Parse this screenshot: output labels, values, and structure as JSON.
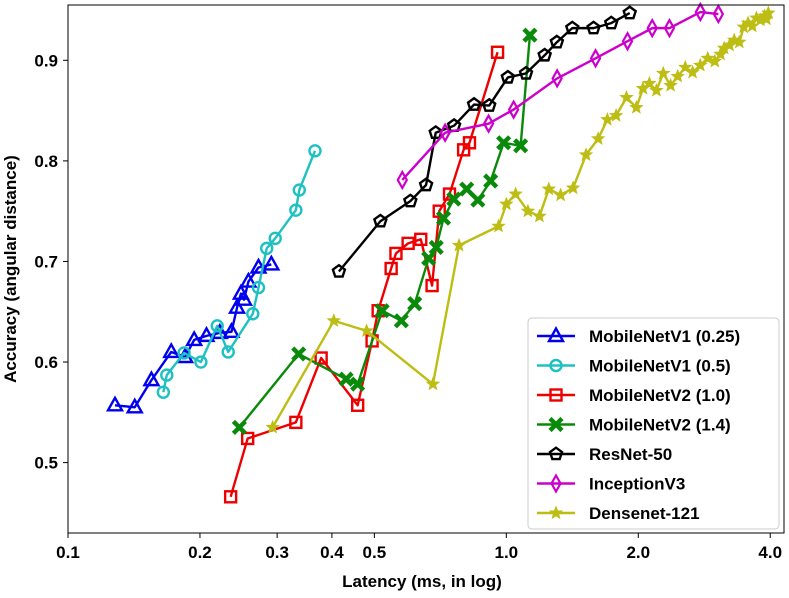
{
  "chart_data": {
    "type": "line",
    "title": "",
    "xlabel": "Latency (ms, in log)",
    "ylabel": "Accuracy (angular distance)",
    "xscale": "log",
    "xlim": [
      0.1,
      4.3
    ],
    "ylim": [
      0.43,
      0.955
    ],
    "xticks": [
      0.1,
      0.2,
      0.3,
      0.4,
      0.5,
      1.0,
      2.0,
      4.0
    ],
    "xtick_labels": [
      "0.1",
      "0.2",
      "0.3",
      "0.4",
      "0.5",
      "1.0",
      "2.0",
      "4.0"
    ],
    "yticks": [
      0.5,
      0.6,
      0.7,
      0.8,
      0.9
    ],
    "ytick_labels": [
      "0.5",
      "0.6",
      "0.7",
      "0.8",
      "0.9"
    ],
    "grid": false,
    "legend_position": "bottom-right",
    "series": [
      {
        "name": "MobileNetV1 (0.25)",
        "color": "#0000ee",
        "marker": "triangle",
        "points": [
          [
            0.128,
            0.557
          ],
          [
            0.142,
            0.555
          ],
          [
            0.155,
            0.582
          ],
          [
            0.172,
            0.61
          ],
          [
            0.185,
            0.605
          ],
          [
            0.194,
            0.622
          ],
          [
            0.207,
            0.626
          ],
          [
            0.222,
            0.629
          ],
          [
            0.236,
            0.63
          ],
          [
            0.243,
            0.654
          ],
          [
            0.248,
            0.668
          ],
          [
            0.252,
            0.662
          ],
          [
            0.258,
            0.68
          ],
          [
            0.272,
            0.694
          ],
          [
            0.291,
            0.697
          ]
        ]
      },
      {
        "name": "MobileNetV1 (0.5)",
        "color": "#1ec1c1",
        "marker": "circle",
        "points": [
          [
            0.165,
            0.57
          ],
          [
            0.168,
            0.587
          ],
          [
            0.184,
            0.609
          ],
          [
            0.201,
            0.6
          ],
          [
            0.219,
            0.636
          ],
          [
            0.232,
            0.61
          ],
          [
            0.264,
            0.648
          ],
          [
            0.272,
            0.674
          ],
          [
            0.284,
            0.713
          ],
          [
            0.297,
            0.723
          ],
          [
            0.331,
            0.751
          ],
          [
            0.337,
            0.771
          ],
          [
            0.366,
            0.81
          ]
        ]
      },
      {
        "name": "MobileNetV2 (1.0)",
        "color": "#ee0000",
        "marker": "square",
        "points": [
          [
            0.235,
            0.466
          ],
          [
            0.257,
            0.524
          ],
          [
            0.331,
            0.54
          ],
          [
            0.378,
            0.604
          ],
          [
            0.458,
            0.557
          ],
          [
            0.494,
            0.621
          ],
          [
            0.51,
            0.651
          ],
          [
            0.546,
            0.693
          ],
          [
            0.56,
            0.708
          ],
          [
            0.597,
            0.718
          ],
          [
            0.638,
            0.722
          ],
          [
            0.677,
            0.676
          ],
          [
            0.703,
            0.75
          ],
          [
            0.742,
            0.767
          ],
          [
            0.799,
            0.811
          ],
          [
            0.824,
            0.818
          ],
          [
            0.955,
            0.908
          ]
        ]
      },
      {
        "name": "MobileNetV2 (1.4)",
        "color": "#0a8a0a",
        "marker": "X",
        "points": [
          [
            0.246,
            0.535
          ],
          [
            0.336,
            0.608
          ],
          [
            0.431,
            0.583
          ],
          [
            0.458,
            0.578
          ],
          [
            0.521,
            0.651
          ],
          [
            0.576,
            0.641
          ],
          [
            0.618,
            0.658
          ],
          [
            0.665,
            0.703
          ],
          [
            0.692,
            0.714
          ],
          [
            0.719,
            0.743
          ],
          [
            0.759,
            0.762
          ],
          [
            0.812,
            0.772
          ],
          [
            0.861,
            0.761
          ],
          [
            0.921,
            0.78
          ],
          [
            0.986,
            0.818
          ],
          [
            1.078,
            0.815
          ],
          [
            1.132,
            0.925
          ]
        ]
      },
      {
        "name": "ResNet-50",
        "color": "#000000",
        "marker": "pentagon",
        "points": [
          [
            0.415,
            0.69
          ],
          [
            0.516,
            0.74
          ],
          [
            0.604,
            0.76
          ],
          [
            0.656,
            0.776
          ],
          [
            0.69,
            0.828
          ],
          [
            0.76,
            0.835
          ],
          [
            0.844,
            0.856
          ],
          [
            0.914,
            0.855
          ],
          [
            1.008,
            0.883
          ],
          [
            1.109,
            0.887
          ],
          [
            1.223,
            0.905
          ],
          [
            1.304,
            0.918
          ],
          [
            1.414,
            0.932
          ],
          [
            1.581,
            0.932
          ],
          [
            1.735,
            0.937
          ],
          [
            1.912,
            0.947
          ]
        ]
      },
      {
        "name": "InceptionV3",
        "color": "#cc00cc",
        "marker": "thin_diamond",
        "points": [
          [
            0.579,
            0.781
          ],
          [
            0.725,
            0.828
          ],
          [
            0.911,
            0.837
          ],
          [
            1.039,
            0.851
          ],
          [
            1.306,
            0.882
          ],
          [
            1.598,
            0.902
          ],
          [
            1.89,
            0.919
          ],
          [
            2.152,
            0.932
          ],
          [
            2.356,
            0.932
          ],
          [
            2.771,
            0.948
          ],
          [
            3.046,
            0.946
          ]
        ]
      },
      {
        "name": "Densenet-121",
        "color": "#bdbd14",
        "marker": "star",
        "points": [
          [
            0.293,
            0.535
          ],
          [
            0.404,
            0.641
          ],
          [
            0.48,
            0.631
          ],
          [
            0.68,
            0.578
          ],
          [
            0.78,
            0.716
          ],
          [
            0.96,
            0.735
          ],
          [
            1.0,
            0.757
          ],
          [
            1.05,
            0.767
          ],
          [
            1.12,
            0.75
          ],
          [
            1.19,
            0.745
          ],
          [
            1.25,
            0.772
          ],
          [
            1.33,
            0.766
          ],
          [
            1.42,
            0.773
          ],
          [
            1.52,
            0.806
          ],
          [
            1.62,
            0.822
          ],
          [
            1.7,
            0.841
          ],
          [
            1.78,
            0.845
          ],
          [
            1.88,
            0.863
          ],
          [
            1.98,
            0.853
          ],
          [
            2.05,
            0.872
          ],
          [
            2.12,
            0.877
          ],
          [
            2.2,
            0.87
          ],
          [
            2.28,
            0.887
          ],
          [
            2.37,
            0.875
          ],
          [
            2.46,
            0.884
          ],
          [
            2.56,
            0.893
          ],
          [
            2.66,
            0.888
          ],
          [
            2.77,
            0.895
          ],
          [
            2.88,
            0.902
          ],
          [
            2.99,
            0.899
          ],
          [
            3.08,
            0.906
          ],
          [
            3.14,
            0.912
          ],
          [
            3.23,
            0.915
          ],
          [
            3.31,
            0.92
          ],
          [
            3.4,
            0.918
          ],
          [
            3.48,
            0.933
          ],
          [
            3.56,
            0.937
          ],
          [
            3.64,
            0.934
          ],
          [
            3.72,
            0.942
          ],
          [
            3.8,
            0.94
          ],
          [
            3.88,
            0.944
          ],
          [
            3.92,
            0.941
          ],
          [
            3.96,
            0.947
          ]
        ]
      }
    ]
  }
}
